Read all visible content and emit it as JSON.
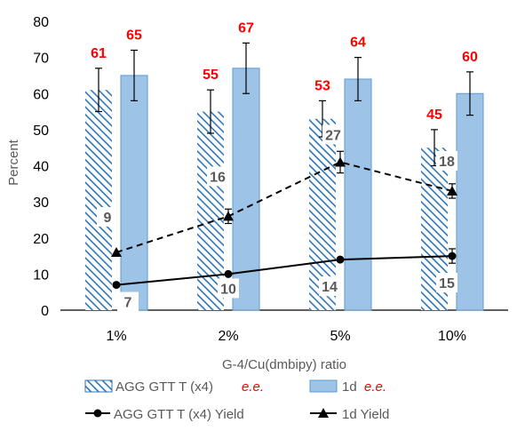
{
  "chart_data": {
    "type": "bar",
    "categories": [
      "1%",
      "2%",
      "5%",
      "10%"
    ],
    "xlabel": "G-4/Cu(dmbipy) ratio",
    "ylabel": "Percent",
    "ylim": [
      0,
      80
    ],
    "yticks": [
      0,
      10,
      20,
      30,
      40,
      50,
      60,
      70,
      80
    ],
    "grid": false,
    "legend_position": "bottom",
    "colors": {
      "hatch_bar": "#2e75b6",
      "solid_bar": "#9dc3e6",
      "solid_bar_edge": "#5b9bd5",
      "bar_label": "#ff0000",
      "yield_label": "#595959",
      "line": "#000000"
    },
    "bar_series": [
      {
        "legend_name": "AGG GTT T (x4)",
        "legend_suffix": "e.e.",
        "style": "hatched",
        "values": [
          61,
          55,
          53,
          45
        ],
        "error": [
          6,
          6,
          5,
          5
        ],
        "labels": [
          "61",
          "55",
          "53",
          "45"
        ]
      },
      {
        "legend_name": "1d",
        "legend_suffix": "e.e.",
        "style": "solid",
        "values": [
          65,
          67,
          64,
          60
        ],
        "error": [
          7,
          7,
          6,
          6
        ],
        "labels": [
          "65",
          "67",
          "64",
          "60"
        ]
      }
    ],
    "line_series": [
      {
        "legend_name": "AGG GTT T (x4) Yield",
        "marker": "circle",
        "dash": "solid",
        "values": [
          7,
          10,
          14,
          15
        ],
        "error": [
          0,
          0,
          0,
          2
        ],
        "labels": [
          "7",
          "10",
          "14",
          "15"
        ]
      },
      {
        "legend_name": "1d Yield",
        "marker": "triangle",
        "dash": "dashed",
        "values": [
          16,
          26,
          41,
          33
        ],
        "error": [
          0,
          2,
          3,
          2
        ],
        "labels": [
          "9",
          "16",
          "27",
          "18"
        ]
      }
    ]
  }
}
